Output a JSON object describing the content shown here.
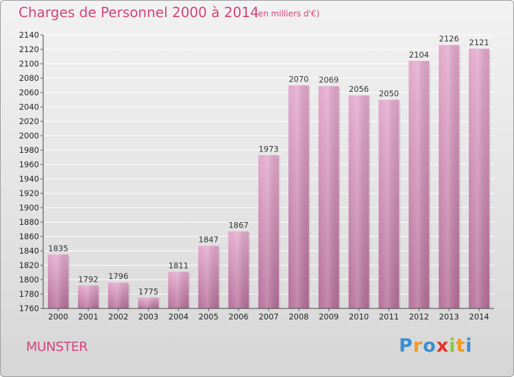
{
  "title": "Charges de Personnel 2000 à 2014",
  "subtitle": "(en milliers d'€)",
  "commune": "MUNSTER",
  "logo": {
    "letters": [
      "P",
      "r",
      "o",
      "x",
      "i",
      "t",
      "i"
    ],
    "colors": [
      "#3a8fd0",
      "#f39a1e",
      "#3a8fd0",
      "#e2322a",
      "#8cc63f",
      "#f39a1e",
      "#3a8fd0"
    ]
  },
  "colors": {
    "bar_top": "#e3a9cc",
    "bar_bottom": "#b56f99",
    "accent": "#d2447c"
  },
  "chart_data": {
    "type": "bar",
    "categories": [
      "2000",
      "2001",
      "2002",
      "2003",
      "2004",
      "2005",
      "2006",
      "2007",
      "2008",
      "2009",
      "2010",
      "2011",
      "2012",
      "2013",
      "2014"
    ],
    "values": [
      1835,
      1792,
      1796,
      1775,
      1811,
      1847,
      1867,
      1973,
      2070,
      2069,
      2056,
      2050,
      2104,
      2126,
      2121
    ],
    "ylim": [
      1760,
      2140
    ],
    "yticks": [
      1760,
      1780,
      1800,
      1820,
      1840,
      1860,
      1880,
      1900,
      1920,
      1940,
      1960,
      1980,
      2000,
      2020,
      2040,
      2060,
      2080,
      2100,
      2120,
      2140
    ],
    "grid": true
  }
}
